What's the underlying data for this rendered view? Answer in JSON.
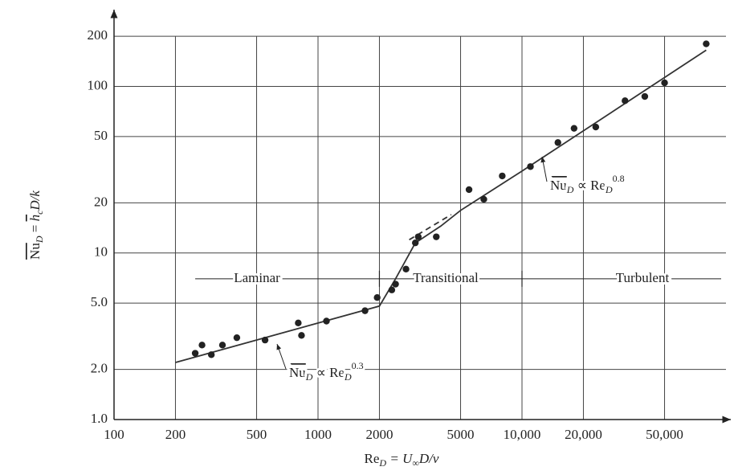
{
  "chart_data": {
    "type": "scatter",
    "ylabel": {
      "main": "Nu",
      "sub": "D",
      "eq": " = ",
      "h": "h",
      "hsub": "c",
      "rest": "D/k"
    },
    "xlabel": {
      "main": "Re",
      "sub": "D",
      "eq": " = U",
      "sub2": "∞",
      "rest": "D/ν"
    },
    "log_x": true,
    "log_y": true,
    "grid": true,
    "xlim": [
      100,
      100000
    ],
    "ylim": [
      1,
      250
    ],
    "xticks": [
      100,
      200,
      500,
      1000,
      2000,
      5000,
      {
        "value": 10000,
        "label": "10,000"
      },
      {
        "value": 20000,
        "label": "20,000"
      },
      {
        "value": 50000,
        "label": "50,000"
      }
    ],
    "yticks": [
      {
        "value": 1,
        "label": "1.0"
      },
      {
        "value": 2,
        "label": "2.0"
      },
      {
        "value": 5,
        "label": "5.0"
      },
      10,
      20,
      50,
      100,
      200
    ],
    "color": "#333333",
    "x": [
      250,
      270,
      300,
      340,
      400,
      550,
      800,
      830,
      1100,
      1700,
      1950,
      2300,
      2400,
      2700,
      3000,
      3100,
      3800,
      5500,
      6500,
      8000,
      11000,
      15000,
      18000,
      23000,
      32000,
      40000,
      50000,
      80000
    ],
    "values": [
      2.5,
      2.8,
      2.45,
      2.8,
      3.1,
      3.0,
      3.8,
      3.2,
      3.9,
      4.5,
      5.4,
      6.0,
      6.5,
      8.0,
      11.5,
      12.5,
      12.5,
      24,
      21,
      29,
      33,
      46,
      56,
      57,
      82,
      87,
      105,
      180
    ],
    "curves": [
      {
        "x": [
          200,
          2000,
          2400,
          3000,
          4000,
          5000,
          10000,
          80000
        ],
        "y": [
          2.2,
          4.8,
          7,
          11.5,
          14.5,
          18,
          31,
          165
        ],
        "style": "solid"
      },
      {
        "x": [
          2800,
          4500
        ],
        "y": [
          12,
          17
        ],
        "style": "dashed"
      }
    ],
    "regime_level": 7,
    "regime_boundaries": [
      2000,
      10000
    ],
    "regimes": [
      "Laminar",
      "Transitional",
      "Turbulent"
    ],
    "fit_labels": [
      {
        "main": "Nu",
        "sub": "D",
        "rel": " ∝ Re",
        "sub2": "D",
        "exp": "0.3"
      },
      {
        "main": "Nu",
        "sub": "D",
        "rel": " ∝ Re",
        "sub2": "D",
        "exp": "0.8"
      }
    ]
  }
}
